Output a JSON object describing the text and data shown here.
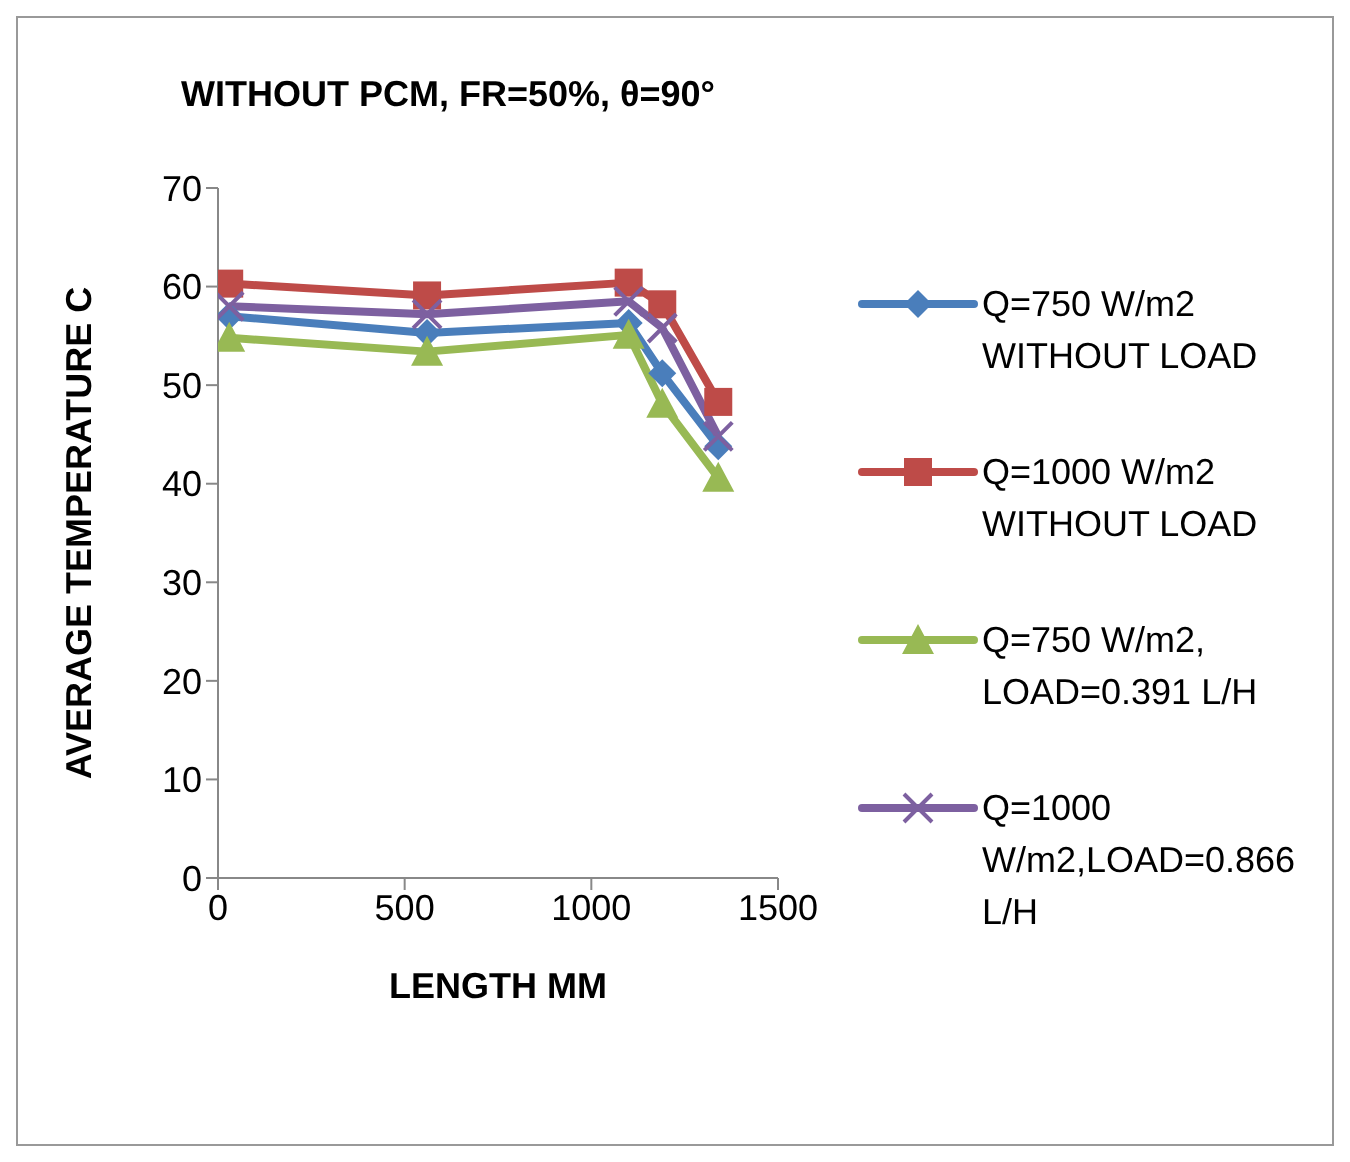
{
  "chart_data": {
    "type": "line",
    "title": "WITHOUT PCM, FR=50%, θ=90°",
    "xlabel": "LENGTH MM",
    "ylabel": "AVERAGE TEMPERATURE C",
    "x": [
      30,
      560,
      1100,
      1190,
      1340
    ],
    "series": [
      {
        "name": "Q=750 W/m2 WITHOUT LOAD",
        "color": "#4a7ebb",
        "marker": "diamond",
        "values": [
          57,
          55.3,
          56.3,
          51.2,
          43.8
        ]
      },
      {
        "name": "Q=1000 W/m2 WITHOUT LOAD",
        "color": "#be4b48",
        "marker": "square",
        "values": [
          60.3,
          59.1,
          60.4,
          58.2,
          48.3
        ]
      },
      {
        "name": "Q=750 W/m2, LOAD=0.391 L/H",
        "color": "#98b954",
        "marker": "triangle",
        "values": [
          54.8,
          53.4,
          55.1,
          48.1,
          40.6
        ]
      },
      {
        "name": "Q=1000 W/m2,LOAD=0.866 L/H",
        "color": "#7d60a0",
        "marker": "cross",
        "values": [
          58,
          57.2,
          58.5,
          55.8,
          44.8
        ]
      }
    ],
    "xlim": [
      0,
      1500
    ],
    "xticks": [
      0,
      500,
      1000,
      1500
    ],
    "ylim": [
      0,
      70
    ],
    "yticks": [
      0,
      10,
      20,
      30,
      40,
      50,
      60,
      70
    ],
    "grid": false,
    "legend": "right",
    "line_style": "solid"
  }
}
